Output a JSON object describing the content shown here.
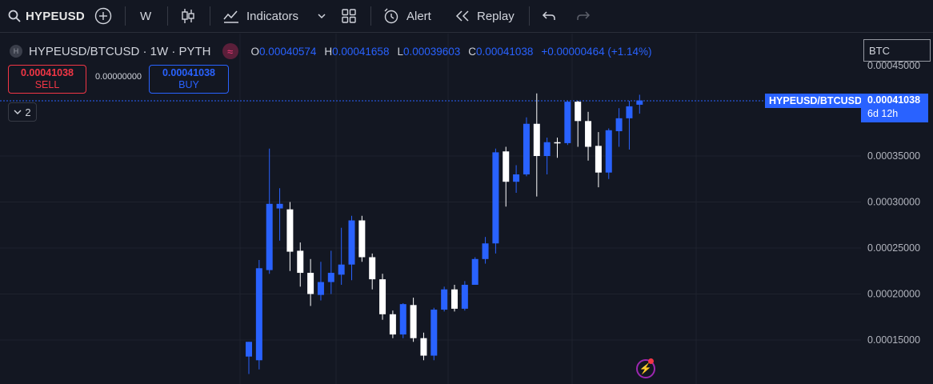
{
  "toolbar": {
    "symbol": "HYPEUSD",
    "interval": "W",
    "indicators_label": "Indicators",
    "alert_label": "Alert",
    "replay_label": "Replay"
  },
  "legend": {
    "badge": "H",
    "title": "HYPEUSD/BTCUSD · 1W · PYTH",
    "open_key": "O",
    "open": "0.00040574",
    "high_key": "H",
    "high": "0.00041658",
    "low_key": "L",
    "low": "0.00039603",
    "close_key": "C",
    "close": "0.00041038",
    "change": "+0.00000464 (+1.14%)"
  },
  "trading": {
    "sell_price": "0.00041038",
    "sell_label": "SELL",
    "spread": "0.00000000",
    "buy_price": "0.00041038",
    "buy_label": "BUY"
  },
  "collapse": {
    "count": "2"
  },
  "price_axis": {
    "currency": "BTC",
    "last_symbol": "HYPEUSD/BTCUSD",
    "last_price": "0.00041038",
    "countdown": "6d 12h",
    "ticks": [
      "0.00045000",
      "0.00035000",
      "0.00030000",
      "0.00025000",
      "0.00020000",
      "0.00015000"
    ]
  },
  "colors": {
    "up": "#2962ff",
    "down": "#ffffff",
    "background": "#131722",
    "grid": "#1e222d"
  },
  "chart_data": {
    "type": "candlestick",
    "interval": "1W",
    "ylim": [
      0.00012,
      0.00046
    ],
    "last_price": 0.00041038,
    "candles": [
      {
        "o": 0.000132,
        "h": 0.000148,
        "l": 0.000113,
        "c": 0.000148
      },
      {
        "o": 0.000128,
        "h": 0.000237,
        "l": 0.000118,
        "c": 0.000228
      },
      {
        "o": 0.000226,
        "h": 0.000358,
        "l": 0.000222,
        "c": 0.000298
      },
      {
        "o": 0.000293,
        "h": 0.000315,
        "l": 0.000258,
        "c": 0.000298
      },
      {
        "o": 0.000292,
        "h": 0.0003,
        "l": 0.000225,
        "c": 0.000246
      },
      {
        "o": 0.000247,
        "h": 0.000256,
        "l": 0.000208,
        "c": 0.000223
      },
      {
        "o": 0.000223,
        "h": 0.000238,
        "l": 0.000187,
        "c": 0.0002
      },
      {
        "o": 0.000199,
        "h": 0.000235,
        "l": 0.000193,
        "c": 0.000213
      },
      {
        "o": 0.000213,
        "h": 0.000247,
        "l": 0.0002,
        "c": 0.000223
      },
      {
        "o": 0.000221,
        "h": 0.000272,
        "l": 0.00021,
        "c": 0.000232
      },
      {
        "o": 0.000232,
        "h": 0.000285,
        "l": 0.000215,
        "c": 0.00028
      },
      {
        "o": 0.00028,
        "h": 0.000285,
        "l": 0.000235,
        "c": 0.00024
      },
      {
        "o": 0.00024,
        "h": 0.000244,
        "l": 0.000205,
        "c": 0.000216
      },
      {
        "o": 0.000216,
        "h": 0.000222,
        "l": 0.000172,
        "c": 0.000178
      },
      {
        "o": 0.000178,
        "h": 0.000182,
        "l": 0.000152,
        "c": 0.000156
      },
      {
        "o": 0.000156,
        "h": 0.00019,
        "l": 0.000152,
        "c": 0.000189
      },
      {
        "o": 0.000188,
        "h": 0.000196,
        "l": 0.000148,
        "c": 0.000152
      },
      {
        "o": 0.000152,
        "h": 0.000158,
        "l": 0.000128,
        "c": 0.000133
      },
      {
        "o": 0.000133,
        "h": 0.000185,
        "l": 0.000128,
        "c": 0.000183
      },
      {
        "o": 0.000183,
        "h": 0.000208,
        "l": 0.000181,
        "c": 0.000205
      },
      {
        "o": 0.000205,
        "h": 0.00021,
        "l": 0.000181,
        "c": 0.000184
      },
      {
        "o": 0.000184,
        "h": 0.000214,
        "l": 0.000182,
        "c": 0.00021
      },
      {
        "o": 0.00021,
        "h": 0.00024,
        "l": 0.00021,
        "c": 0.000238
      },
      {
        "o": 0.000238,
        "h": 0.000262,
        "l": 0.000233,
        "c": 0.000255
      },
      {
        "o": 0.000255,
        "h": 0.000358,
        "l": 0.000244,
        "c": 0.000354
      },
      {
        "o": 0.000355,
        "h": 0.00036,
        "l": 0.000295,
        "c": 0.000322
      },
      {
        "o": 0.000322,
        "h": 0.00034,
        "l": 0.00031,
        "c": 0.00033
      },
      {
        "o": 0.00033,
        "h": 0.000392,
        "l": 0.000328,
        "c": 0.000385
      },
      {
        "o": 0.000385,
        "h": 0.000418,
        "l": 0.000306,
        "c": 0.00035
      },
      {
        "o": 0.00035,
        "h": 0.00037,
        "l": 0.00033,
        "c": 0.000365
      },
      {
        "o": 0.000365,
        "h": 0.00037,
        "l": 0.000348,
        "c": 0.000364
      },
      {
        "o": 0.000364,
        "h": 0.00041,
        "l": 0.000362,
        "c": 0.000409
      },
      {
        "o": 0.000409,
        "h": 0.00041,
        "l": 0.00036,
        "c": 0.000388
      },
      {
        "o": 0.000388,
        "h": 0.000398,
        "l": 0.000345,
        "c": 0.00036
      },
      {
        "o": 0.000361,
        "h": 0.000376,
        "l": 0.000316,
        "c": 0.000332
      },
      {
        "o": 0.000332,
        "h": 0.00038,
        "l": 0.000325,
        "c": 0.000378
      },
      {
        "o": 0.000377,
        "h": 0.000402,
        "l": 0.00036,
        "c": 0.000391
      },
      {
        "o": 0.000391,
        "h": 0.00041,
        "l": 0.000357,
        "c": 0.000404
      },
      {
        "o": 0.00040574,
        "h": 0.00041658,
        "l": 0.00039603,
        "c": 0.00041038
      }
    ]
  }
}
